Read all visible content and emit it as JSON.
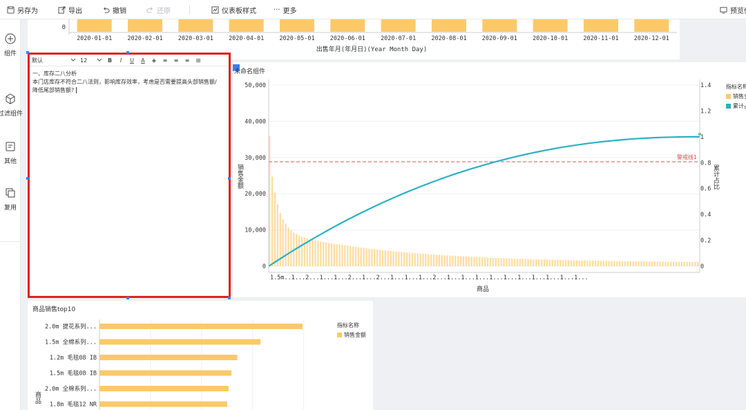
{
  "toolbar": {
    "save_as": "另存为",
    "export": "导出",
    "undo": "撤销",
    "redo": "还原",
    "dashboard_style": "仪表板样式",
    "more": "更多",
    "preview": "预览仪"
  },
  "sidebar": {
    "items": [
      {
        "label": "组件",
        "icon": "plus-circle-icon"
      },
      {
        "label": "过滤组件",
        "icon": "cube-icon"
      },
      {
        "label": "其他",
        "icon": "document-icon"
      },
      {
        "label": "复用",
        "icon": "copy-icon"
      }
    ]
  },
  "editor": {
    "font": "默认",
    "size": "12",
    "line1": "一、库存二八分析",
    "line2": "本门店库存不符合二八法则，影响库存效率，考虑是否需要提高头部销售额/",
    "line3": "降低尾部销售额?"
  },
  "top_chart": {
    "zero_label": "0",
    "months": [
      "2020-01-01",
      "2020-02-01",
      "2020-03-01",
      "2020-04-01",
      "2020-05-01",
      "2020-06-01",
      "2020-07-01",
      "2020-08-01",
      "2020-09-01",
      "2020-10-01",
      "2020-11-01",
      "2020-12-01"
    ],
    "xlabel": "出售年月(年月日)(Year Month Day)"
  },
  "pareto": {
    "title": "未命名组件",
    "ylabel_left": "销售金额",
    "ylabel_right": "累计占比",
    "xlabel": "商品",
    "left_ticks": [
      "50,000",
      "40,000",
      "30,000",
      "20,000",
      "10,000",
      "0"
    ],
    "right_ticks": [
      "1.4",
      "1.2",
      "1",
      "0.8",
      "0.6",
      "0.4",
      "0.2",
      "0"
    ],
    "x_ticks": "1.5m..1...2...1...1...2...1...2...1...1...1...2...1...1...1...1...1...1...1...1...1...1...",
    "warning_label": "警戒线1",
    "legend_title": "指标名称",
    "legend": [
      {
        "name": "销售金额",
        "color": "#fbc96a"
      },
      {
        "name": "累计占比",
        "color": "#2ab0c2"
      }
    ]
  },
  "chart_data": {
    "type": "bar",
    "title": "商品销售top10",
    "ylabel": "商品",
    "categories": [
      "2.0m 提花系列...",
      "1.5m 全棉系列...",
      "1.2m 毛毯08 IB",
      "1.5m 毛毯08 IB",
      "2.0m 全棉系列...",
      "1.8m 毛毯12 NR"
    ],
    "series": [
      {
        "name": "销售金额",
        "values": [
          14000,
          11100,
          9500,
          9100,
          8900,
          8800
        ]
      }
    ],
    "xlim": [
      0,
      16000
    ],
    "legend_title": "指标名称",
    "color": "#fbc96a"
  }
}
